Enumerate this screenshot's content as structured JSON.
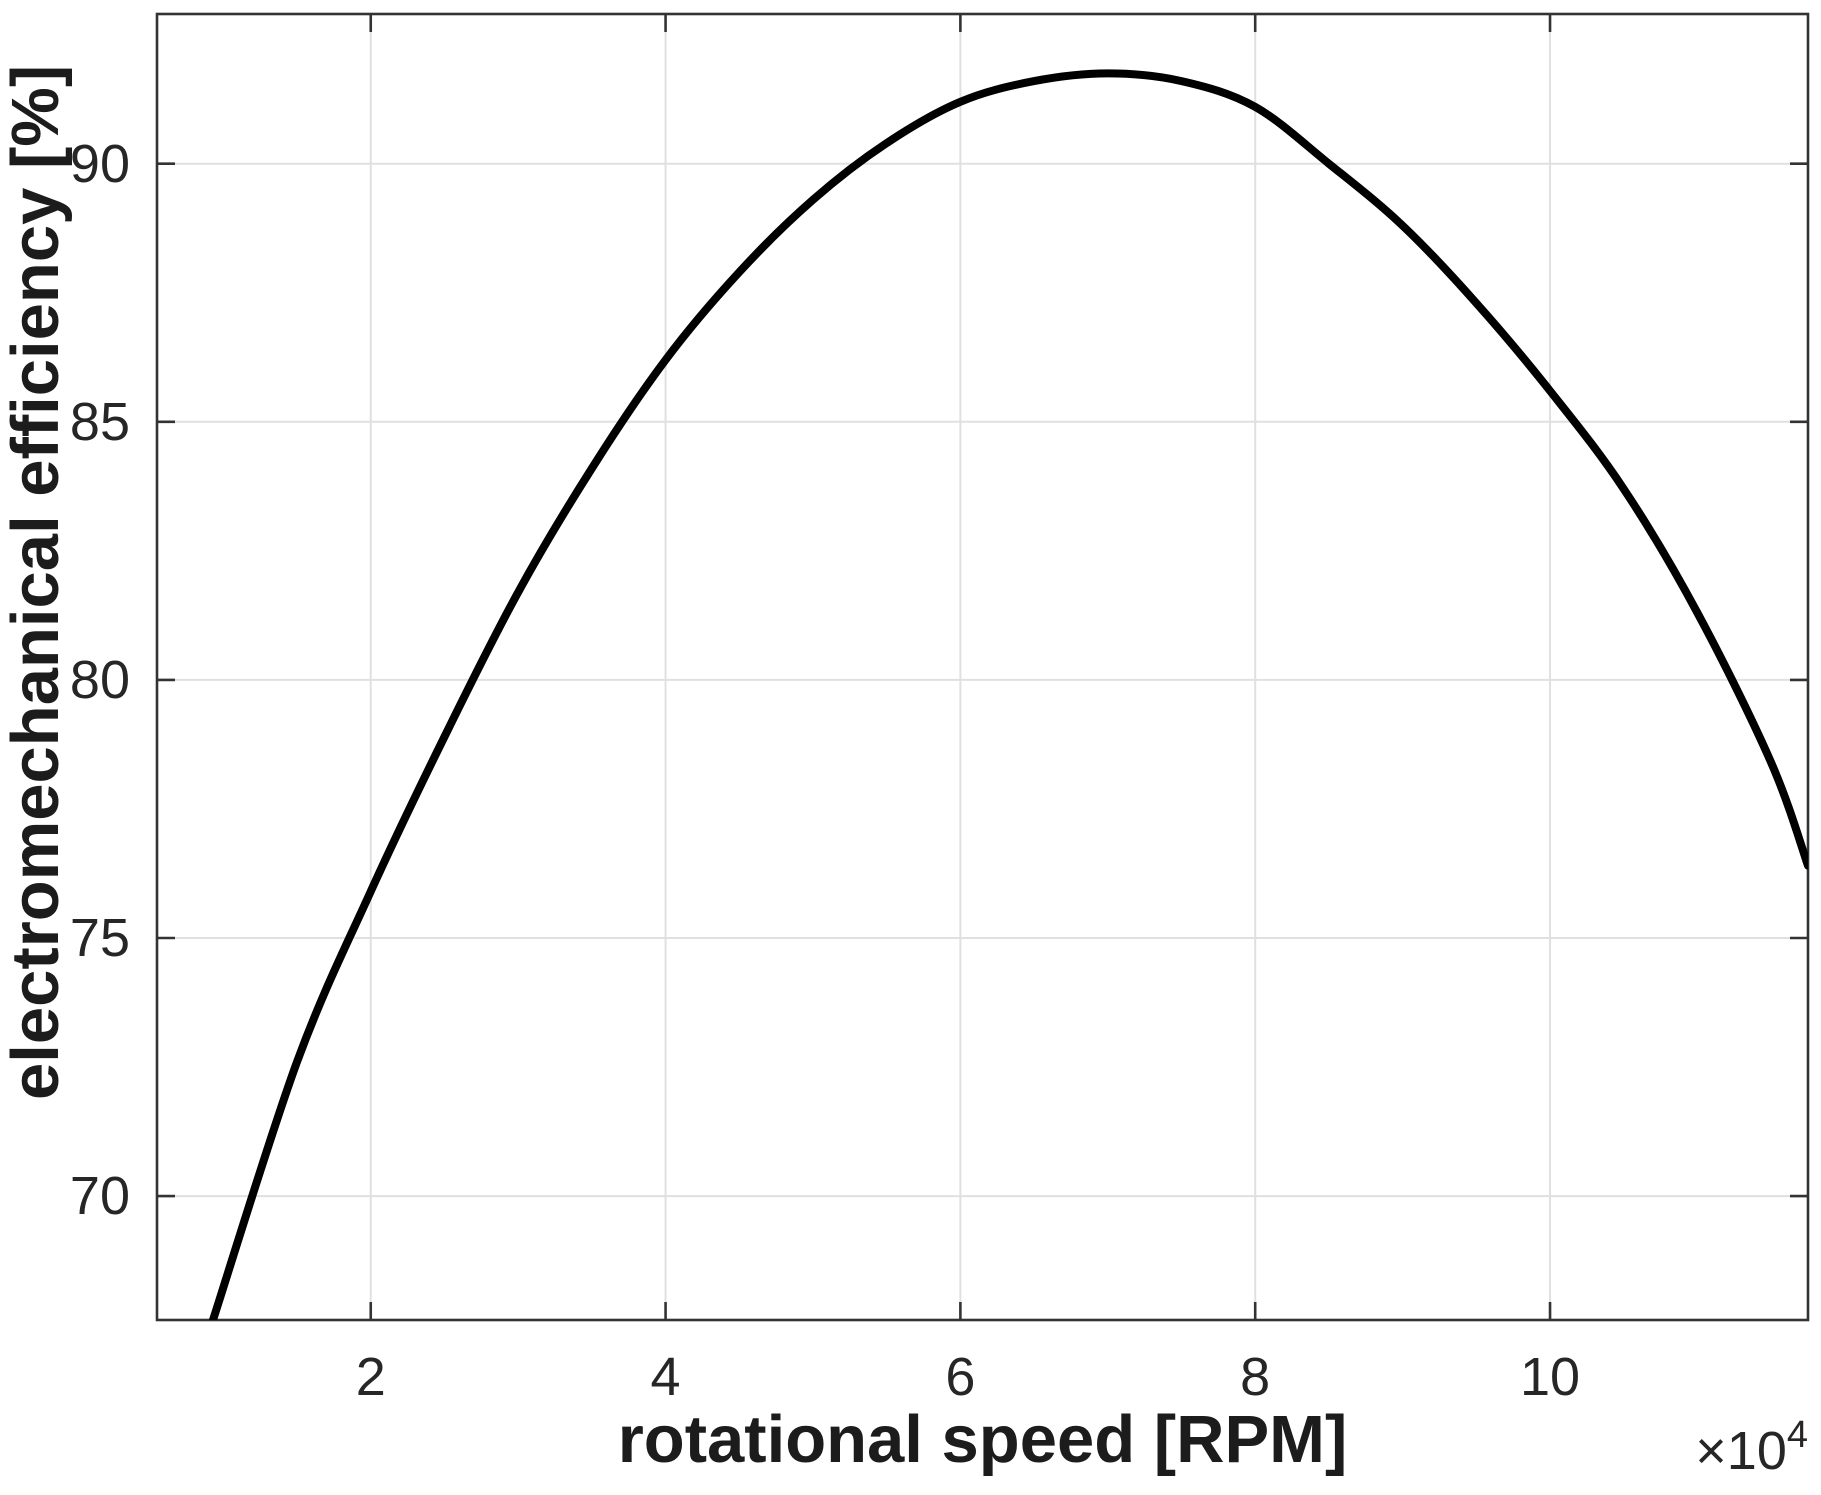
{
  "figure": {
    "background": "#ffffff",
    "axis_color": "#333333",
    "grid_color": "#e0e0e0",
    "tick_label_color": "#262626",
    "axis_label_color": "#1c1c1c",
    "curve_color": "#000000"
  },
  "chart_data": {
    "type": "line",
    "title": "",
    "xlabel": "rotational speed [RPM]",
    "ylabel": "electromechanical efficiency [%]",
    "x_offset_base": "×10",
    "x_offset_exponent": "4",
    "x_unit_scale": 10000,
    "xlim": [
      0.55,
      11.75
    ],
    "ylim": [
      67.6,
      92.9
    ],
    "x_ticks": [
      2,
      4,
      6,
      8,
      10
    ],
    "x_tick_labels": [
      "2",
      "4",
      "6",
      "8",
      "10"
    ],
    "y_ticks": [
      70,
      75,
      80,
      85,
      90
    ],
    "y_tick_labels": [
      "70",
      "75",
      "80",
      "85",
      "90"
    ],
    "grid": true,
    "legend": null,
    "series": [
      {
        "name": "electromechanical efficiency",
        "x": [
          0.93,
          1.5,
          2.0,
          2.5,
          3.0,
          3.5,
          4.0,
          4.5,
          5.0,
          5.5,
          6.0,
          6.5,
          7.0,
          7.5,
          8.0,
          8.5,
          9.0,
          9.5,
          10.0,
          10.5,
          11.0,
          11.5,
          11.75
        ],
        "y": [
          67.6,
          72.6,
          75.9,
          78.9,
          81.7,
          84.1,
          86.2,
          87.9,
          89.3,
          90.4,
          91.2,
          91.6,
          91.75,
          91.6,
          91.1,
          90.0,
          88.8,
          87.3,
          85.6,
          83.7,
          81.3,
          78.4,
          76.4
        ],
        "peak": {
          "x": 7.0,
          "y": 91.75
        }
      }
    ]
  }
}
